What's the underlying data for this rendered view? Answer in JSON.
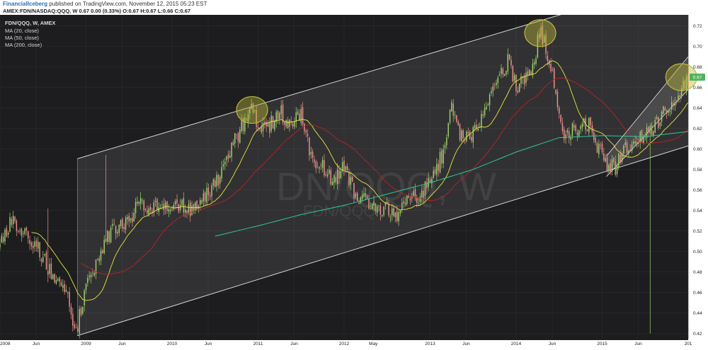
{
  "header": {
    "author": "FinancialIceberg",
    "publish_text": " published on TradingView.com, November 12, 2015 05:23 EST",
    "symbol_line": "AMEX:FDN/NASDAQ:QQQ, W  0.67 0.00 (0.33%) O:0.67 H:0.67 L:0.66 C:0.67"
  },
  "legend": {
    "title": "FDN/QQQ, W, AMEX",
    "ma20": "MA (20, close)",
    "ma50": "MA (50, close)",
    "ma200": "MA (200, close)"
  },
  "watermark": {
    "main": "DN/QQQ, W",
    "sub": "FDN/QQQ"
  },
  "price_badge": "0.67",
  "colors": {
    "background": "#1d1d1f",
    "candle_up": "#9fd56c",
    "candle_down": "#f0938e",
    "ma20": "#e8e640",
    "ma50": "#b8232a",
    "ma200": "#2ec8a0",
    "channel": "#e6e6e6",
    "highlight": "#bdba3a",
    "badge": "#4fb35a"
  },
  "chart_data": {
    "type": "candlestick",
    "timeframe": "W",
    "symbol": "FDN/QQQ",
    "y_ticks": [
      "0.42",
      "0.44",
      "0.46",
      "0.48",
      "0.50",
      "0.52",
      "0.54",
      "0.56",
      "0.58",
      "0.60",
      "0.62",
      "0.64",
      "0.66",
      "0.68",
      "0.70",
      "0.72"
    ],
    "x_ticks": [
      "2008",
      "Jun",
      "2009",
      "Jun",
      "2010",
      "Jun",
      "2011",
      "Jun",
      "2012",
      "May",
      "2013",
      "Jun",
      "2014",
      "Jun",
      "2015",
      "Jun",
      "201"
    ],
    "ylim": [
      0.415,
      0.728
    ],
    "xlim": [
      2008.0,
      2016.0
    ],
    "last_price": 0.67,
    "anchors": [
      [
        2008.0,
        0.505
      ],
      [
        2008.12,
        0.53
      ],
      [
        2008.3,
        0.518
      ],
      [
        2008.45,
        0.502
      ],
      [
        2008.6,
        0.478
      ],
      [
        2008.8,
        0.455
      ],
      [
        2008.88,
        0.42
      ],
      [
        2009.0,
        0.465
      ],
      [
        2009.15,
        0.495
      ],
      [
        2009.3,
        0.522
      ],
      [
        2009.5,
        0.528
      ],
      [
        2009.6,
        0.545
      ],
      [
        2009.8,
        0.543
      ],
      [
        2010.0,
        0.548
      ],
      [
        2010.2,
        0.54
      ],
      [
        2010.4,
        0.556
      ],
      [
        2010.55,
        0.57
      ],
      [
        2010.65,
        0.595
      ],
      [
        2010.8,
        0.62
      ],
      [
        2010.92,
        0.64
      ],
      [
        2011.0,
        0.625
      ],
      [
        2011.1,
        0.618
      ],
      [
        2011.25,
        0.637
      ],
      [
        2011.35,
        0.625
      ],
      [
        2011.5,
        0.632
      ],
      [
        2011.62,
        0.59
      ],
      [
        2011.72,
        0.585
      ],
      [
        2011.85,
        0.57
      ],
      [
        2012.0,
        0.582
      ],
      [
        2012.1,
        0.56
      ],
      [
        2012.25,
        0.548
      ],
      [
        2012.4,
        0.54
      ],
      [
        2012.5,
        0.545
      ],
      [
        2012.6,
        0.533
      ],
      [
        2012.75,
        0.55
      ],
      [
        2012.88,
        0.552
      ],
      [
        2013.0,
        0.57
      ],
      [
        2013.15,
        0.595
      ],
      [
        2013.25,
        0.64
      ],
      [
        2013.35,
        0.615
      ],
      [
        2013.5,
        0.615
      ],
      [
        2013.65,
        0.64
      ],
      [
        2013.8,
        0.67
      ],
      [
        2013.92,
        0.687
      ],
      [
        2014.0,
        0.66
      ],
      [
        2014.1,
        0.668
      ],
      [
        2014.2,
        0.685
      ],
      [
        2014.28,
        0.715
      ],
      [
        2014.38,
        0.69
      ],
      [
        2014.45,
        0.66
      ],
      [
        2014.55,
        0.615
      ],
      [
        2014.7,
        0.62
      ],
      [
        2014.85,
        0.625
      ],
      [
        2014.95,
        0.6
      ],
      [
        2015.05,
        0.585
      ],
      [
        2015.15,
        0.582
      ],
      [
        2015.25,
        0.6
      ],
      [
        2015.4,
        0.61
      ],
      [
        2015.55,
        0.618
      ],
      [
        2015.65,
        0.627
      ],
      [
        2015.75,
        0.64
      ],
      [
        2015.85,
        0.652
      ],
      [
        2015.95,
        0.66
      ],
      [
        2016.0,
        0.668
      ]
    ],
    "spikes": [
      [
        2009.24,
        0.594,
        0.54
      ],
      [
        2008.55,
        0.542,
        0.47
      ],
      [
        2015.56,
        0.6,
        0.42
      ]
    ],
    "ma200_anchors": [
      [
        2010.5,
        0.515
      ],
      [
        2011.0,
        0.525
      ],
      [
        2011.5,
        0.536
      ],
      [
        2012.0,
        0.545
      ],
      [
        2012.5,
        0.556
      ],
      [
        2013.0,
        0.567
      ],
      [
        2013.5,
        0.58
      ],
      [
        2014.0,
        0.597
      ],
      [
        2014.5,
        0.611
      ],
      [
        2015.0,
        0.613
      ],
      [
        2015.5,
        0.612
      ],
      [
        2016.0,
        0.617
      ]
    ],
    "channel": {
      "upper": [
        [
          2009.0,
          0.593
        ],
        [
          2014.4,
          0.728
        ]
      ],
      "lower": [
        [
          2008.9,
          0.418
        ],
        [
          2016.0,
          0.603
        ]
      ],
      "start_x": 2008.9
    },
    "mini_channel": {
      "upper": [
        [
          2015.05,
          0.593
        ],
        [
          2016.0,
          0.69
        ]
      ],
      "lower": [
        [
          2015.05,
          0.573
        ],
        [
          2016.0,
          0.658
        ]
      ]
    },
    "highlights": [
      [
        2010.93,
        0.638
      ],
      [
        2014.28,
        0.713
      ],
      [
        2015.92,
        0.67
      ]
    ]
  }
}
